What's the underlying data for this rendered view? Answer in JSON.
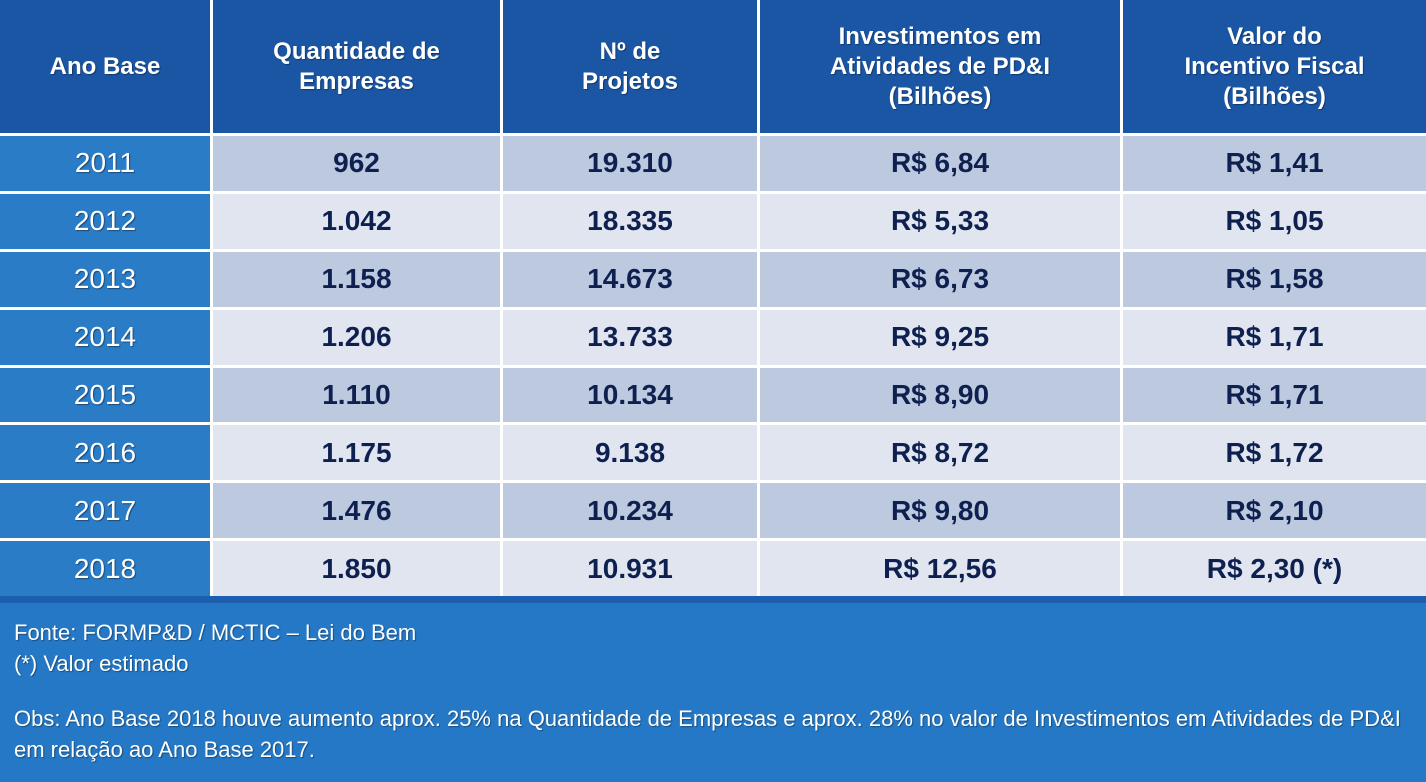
{
  "colors": {
    "header_bg": "#1B56A5",
    "year_col_bg": "#2A7CC7",
    "row_band_dark": "#BDC9DE",
    "row_band_light": "#E0E5F0",
    "footer_bg": "#2478C5",
    "data_text": "#0E2050",
    "separator": "#FFFFFF"
  },
  "table": {
    "headers": {
      "ano_base": "Ano Base",
      "empresas": "Quantidade de\nEmpresas",
      "projetos": "Nº de\nProjetos",
      "investimentos": "Investimentos em\nAtividades de PD&I\n(Bilhões)",
      "incentivo": "Valor do\nIncentivo Fiscal\n(Bilhões)"
    },
    "rows": [
      {
        "year": "2011",
        "empresas": "962",
        "projetos": "19.310",
        "investimentos": "R$ 6,84",
        "incentivo": "R$ 1,41"
      },
      {
        "year": "2012",
        "empresas": "1.042",
        "projetos": "18.335",
        "investimentos": "R$ 5,33",
        "incentivo": "R$ 1,05"
      },
      {
        "year": "2013",
        "empresas": "1.158",
        "projetos": "14.673",
        "investimentos": "R$ 6,73",
        "incentivo": "R$ 1,58"
      },
      {
        "year": "2014",
        "empresas": "1.206",
        "projetos": "13.733",
        "investimentos": "R$ 9,25",
        "incentivo": "R$ 1,71"
      },
      {
        "year": "2015",
        "empresas": "1.110",
        "projetos": "10.134",
        "investimentos": "R$ 8,90",
        "incentivo": "R$ 1,71"
      },
      {
        "year": "2016",
        "empresas": "1.175",
        "projetos": "9.138",
        "investimentos": "R$ 8,72",
        "incentivo": "R$ 1,72"
      },
      {
        "year": "2017",
        "empresas": "1.476",
        "projetos": "10.234",
        "investimentos": "R$ 9,80",
        "incentivo": "R$ 2,10"
      },
      {
        "year": "2018",
        "empresas": "1.850",
        "projetos": "10.931",
        "investimentos": "R$ 12,56",
        "incentivo": "R$ 2,30 (*)"
      }
    ]
  },
  "footer": {
    "fonte": "Fonte: FORMP&D / MCTIC – Lei do Bem",
    "estimado": "(*) Valor estimado",
    "obs": "Obs: Ano Base 2018 houve aumento aprox. 25% na Quantidade de Empresas e aprox. 28% no valor de Investimentos em Atividades de PD&I em relação ao Ano Base 2017."
  },
  "chart_data": {
    "type": "table",
    "title": "Lei do Bem — resultados por Ano Base",
    "columns": [
      "Ano Base",
      "Quantidade de Empresas",
      "Nº de Projetos",
      "Investimentos em Atividades de PD&I (Bilhões)",
      "Valor do Incentivo Fiscal (Bilhões)"
    ],
    "rows": [
      [
        "2011",
        962,
        19310,
        6.84,
        1.41
      ],
      [
        "2012",
        1042,
        18335,
        5.33,
        1.05
      ],
      [
        "2013",
        1158,
        14673,
        6.73,
        1.58
      ],
      [
        "2014",
        1206,
        13733,
        9.25,
        1.71
      ],
      [
        "2015",
        1110,
        10134,
        8.9,
        1.71
      ],
      [
        "2016",
        1175,
        9138,
        8.72,
        1.72
      ],
      [
        "2017",
        1476,
        10234,
        9.8,
        2.1
      ],
      [
        "2018",
        1850,
        10931,
        12.56,
        2.3
      ]
    ],
    "notes": [
      "Valor do Incentivo Fiscal de 2018 é valor estimado (*)"
    ]
  }
}
